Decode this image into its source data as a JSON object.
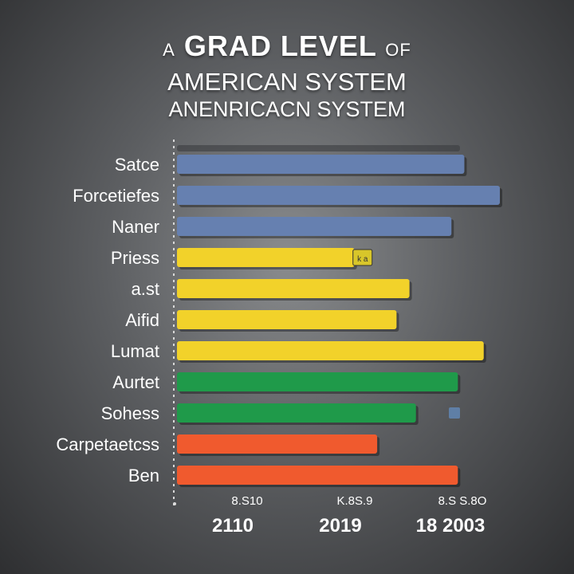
{
  "title": {
    "prefix": "A",
    "main": "GRAD LEVEL",
    "suffix": "OF",
    "line2": "AMERICAN SYSTEM",
    "line3": "ANENRICACN SYSTEM"
  },
  "colors": {
    "blue": "#6680b0",
    "yellow": "#f2d22a",
    "green": "#1f9a4a",
    "orange": "#f05a2e",
    "marker": "#5f7fa6"
  },
  "chart_data": {
    "type": "bar",
    "orientation": "horizontal",
    "categories": [
      "Satce",
      "Forcetiefes",
      "Naner",
      "Priess",
      "a.st",
      "Aifid",
      "Lumat",
      "Aurtet",
      "Sohess",
      "Carpetaetcss",
      "Ben"
    ],
    "values": [
      89,
      100,
      85,
      55,
      72,
      68,
      95,
      87,
      74,
      62,
      87
    ],
    "colors": [
      "blue",
      "blue",
      "blue",
      "yellow",
      "yellow",
      "yellow",
      "yellow",
      "green",
      "green",
      "orange",
      "orange"
    ],
    "xlim": [
      0,
      100
    ],
    "grid": false,
    "legend": "none",
    "tick_labels": [
      "8.S10",
      "K.8S.9",
      "8.S S.8O"
    ],
    "year_labels": [
      "2110",
      "2019",
      "18 2003"
    ],
    "annotations": [
      {
        "near_category": "Priess",
        "text": "k a"
      }
    ]
  }
}
